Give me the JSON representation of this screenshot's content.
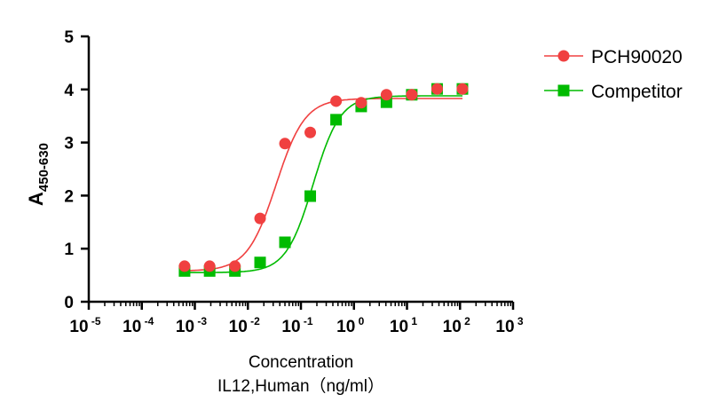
{
  "chart_data": {
    "type": "scatter",
    "x_scale": "log",
    "xlim": [
      1e-05,
      1000
    ],
    "ylim": [
      0,
      5
    ],
    "x_ticks_exponents": [
      -5,
      -4,
      -3,
      -2,
      -1,
      0,
      1,
      2,
      3
    ],
    "x_tick_base": "10",
    "y_ticks": [
      0,
      1,
      2,
      3,
      4,
      5
    ],
    "ylabel_main": "A",
    "ylabel_sub": "450-630",
    "xlabel_line1": "Concentration",
    "xlabel_line2": "IL12,Human（ng/ml）",
    "legend_position": "top-right",
    "grid": false,
    "x": [
      0.00064,
      0.0019,
      0.0057,
      0.017,
      0.05,
      0.15,
      0.46,
      1.37,
      4.1,
      12.3,
      37,
      111
    ],
    "series": [
      {
        "name": "PCH90020",
        "color": "#f04040",
        "marker": "circle",
        "values": [
          0.67,
          0.67,
          0.67,
          1.57,
          2.98,
          3.19,
          3.78,
          3.75,
          3.9,
          3.9,
          4.01,
          4.01
        ],
        "fit": {
          "bottom": 0.58,
          "top": 3.83,
          "ec50": 0.034,
          "hill": 1.6
        }
      },
      {
        "name": "Competitor",
        "color": "#00bb00",
        "marker": "square",
        "values": [
          0.58,
          0.58,
          0.58,
          0.74,
          1.12,
          1.99,
          3.43,
          3.68,
          3.76,
          3.9,
          4.01,
          4.01
        ],
        "fit": {
          "bottom": 0.55,
          "top": 3.88,
          "ec50": 0.17,
          "hill": 1.7
        }
      }
    ]
  }
}
